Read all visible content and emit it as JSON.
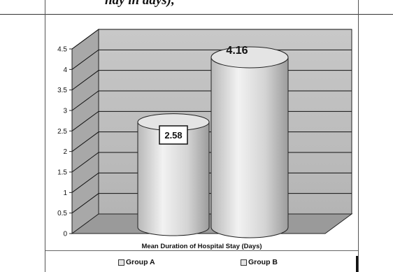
{
  "page": {
    "top_text": "hay in days),"
  },
  "chart_data": {
    "type": "bar",
    "style": "3d-cylinder",
    "title": "Mean Duration of Hospital Stay (Days)",
    "categories": [
      "Group A",
      "Group B"
    ],
    "values": [
      2.58,
      4.16
    ],
    "data_labels": [
      "2.58",
      "4.16"
    ],
    "y_ticks": [
      "0",
      "0.5",
      "1",
      "1.5",
      "2",
      "2.5",
      "3",
      "3.5",
      "4",
      "4.5"
    ],
    "ylim": [
      0,
      4.5
    ],
    "grid": true,
    "legend": "bottom",
    "colors": {
      "bar_fill": "#e0e0e0",
      "wall_fill": "#bdbdbd",
      "floor_fill": "#9a9a9a",
      "gridline": "#111111"
    }
  }
}
